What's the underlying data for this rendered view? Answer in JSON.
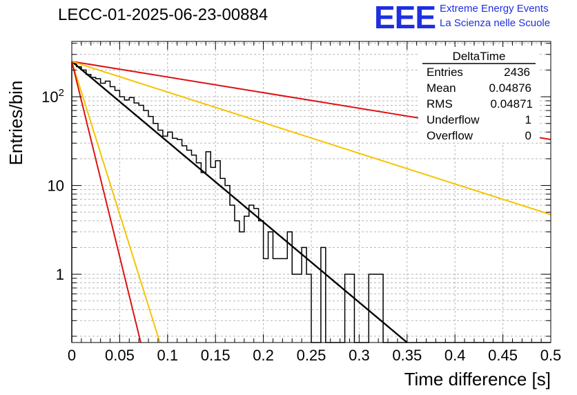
{
  "header": {
    "run_title": "LECC-01-2025-06-23-00884",
    "logo_text": "EEE",
    "logo_line1": "Extreme Energy Events",
    "logo_line2": "La Scienza nelle Scuole",
    "logo_color": "#1f2fe0"
  },
  "stats_box": {
    "title": "DeltaTime",
    "rows": [
      {
        "label": "Entries",
        "value": "2436"
      },
      {
        "label": "Mean",
        "value": "0.04876"
      },
      {
        "label": "RMS",
        "value": "0.04871"
      },
      {
        "label": "Underflow",
        "value": "1"
      },
      {
        "label": "Overflow",
        "value": "0"
      }
    ]
  },
  "chart_data": {
    "type": "line",
    "title": "LECC-01-2025-06-23-00884",
    "xlabel": "Time difference [s]",
    "ylabel": "Entries/bin",
    "xlim": [
      0,
      0.5
    ],
    "ylim": [
      0.17,
      420
    ],
    "y_scale": "log",
    "grid": true,
    "x_ticks": [
      0,
      0.05,
      0.1,
      0.15,
      0.2,
      0.25,
      0.3,
      0.35,
      0.4,
      0.45,
      0.5
    ],
    "x_tick_labels": [
      "0",
      "0.05",
      "0.1",
      "0.15",
      "0.2",
      "0.25",
      "0.3",
      "0.35",
      "0.4",
      "0.45",
      "0.5"
    ],
    "y_ticks": [
      1,
      10,
      100
    ],
    "y_tick_labels": [
      "1",
      "10",
      "10^2"
    ],
    "histogram": {
      "bin_width": 0.005,
      "color": "#000000",
      "values": [
        237,
        218,
        200,
        178,
        165,
        160,
        142,
        150,
        130,
        118,
        100,
        92,
        98,
        85,
        80,
        70,
        60,
        50,
        42,
        36,
        40,
        34,
        33,
        28,
        25,
        22,
        18,
        14,
        24,
        16,
        19,
        12,
        10,
        6,
        4,
        3,
        4.5,
        6,
        5.5,
        4,
        1.5,
        3,
        1.5,
        1.5,
        1.5,
        3,
        1,
        1,
        2,
        1,
        0.1,
        0.1,
        2,
        0.1,
        0.1,
        0.1,
        0.1,
        1,
        1,
        0.1,
        0.1,
        0.1,
        1,
        1,
        1,
        0.1,
        0.1,
        0.1,
        0.1,
        0.1,
        0.1,
        0.1,
        0.1,
        0.1,
        0.1,
        0.1,
        0.1,
        0.1,
        0.1,
        0.1,
        0.1,
        0.1,
        0.1,
        0.1,
        0.1,
        0.1,
        0.1,
        0.1,
        0.1,
        0.1,
        0.1,
        0.1,
        0.1,
        0.1,
        0.1,
        0.1,
        0.1,
        0.1,
        0.1,
        0.1
      ]
    },
    "series": [
      {
        "color": "#000000",
        "x": [
          0,
          0.35
        ],
        "y": [
          250,
          0.156
        ]
      },
      {
        "color": "#dd1111",
        "x": [
          0,
          0.5
        ],
        "y": [
          250,
          33
        ]
      },
      {
        "color": "#f5c400",
        "x": [
          0,
          0.5
        ],
        "y": [
          250,
          4.7
        ]
      },
      {
        "color": "#f5c400",
        "x": [
          0,
          0.092
        ],
        "y": [
          250,
          0.17
        ]
      },
      {
        "color": "#dd1111",
        "x": [
          0,
          0.072
        ],
        "y": [
          250,
          0.17
        ]
      }
    ]
  }
}
